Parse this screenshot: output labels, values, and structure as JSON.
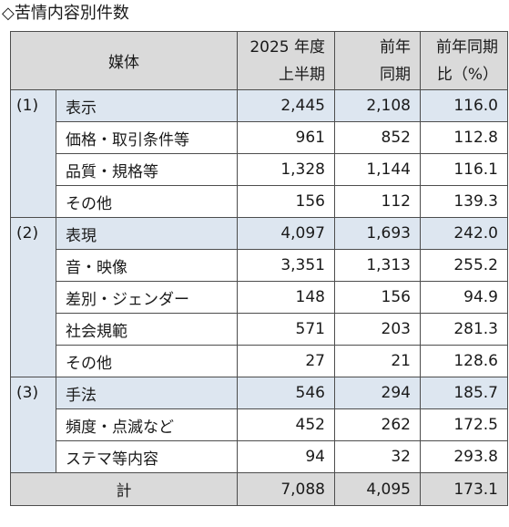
{
  "title": "◇苦情内容別件数",
  "header": {
    "medium": "媒体",
    "col1": [
      "2025 年度",
      "上半期"
    ],
    "col2": [
      "前年",
      "同期"
    ],
    "col3": [
      "前年同期",
      "比（%）"
    ]
  },
  "groups": [
    {
      "no": "(1)",
      "name": "表示",
      "values": [
        "2,445",
        "2,108",
        "116.0"
      ],
      "items": [
        {
          "name": "価格・取引条件等",
          "values": [
            "961",
            "852",
            "112.8"
          ]
        },
        {
          "name": "品質・規格等",
          "values": [
            "1,328",
            "1,144",
            "116.1"
          ]
        },
        {
          "name": "その他",
          "values": [
            "156",
            "112",
            "139.3"
          ]
        }
      ]
    },
    {
      "no": "(2)",
      "name": "表現",
      "values": [
        "4,097",
        "1,693",
        "242.0"
      ],
      "items": [
        {
          "name": "音・映像",
          "values": [
            "3,351",
            "1,313",
            "255.2"
          ]
        },
        {
          "name": "差別・ジェンダー",
          "values": [
            "148",
            "156",
            "94.9"
          ]
        },
        {
          "name": "社会規範",
          "values": [
            "571",
            "203",
            "281.3"
          ]
        },
        {
          "name": "その他",
          "values": [
            "27",
            "21",
            "128.6"
          ]
        }
      ]
    },
    {
      "no": "(3)",
      "name": "手法",
      "values": [
        "546",
        "294",
        "185.7"
      ],
      "items": [
        {
          "name": "頻度・点滅など",
          "values": [
            "452",
            "262",
            "172.5"
          ]
        },
        {
          "name": "ステマ等内容",
          "values": [
            "94",
            "32",
            "293.8"
          ]
        }
      ]
    }
  ],
  "total": {
    "label": "計",
    "values": [
      "7,088",
      "4,095",
      "173.1"
    ]
  }
}
